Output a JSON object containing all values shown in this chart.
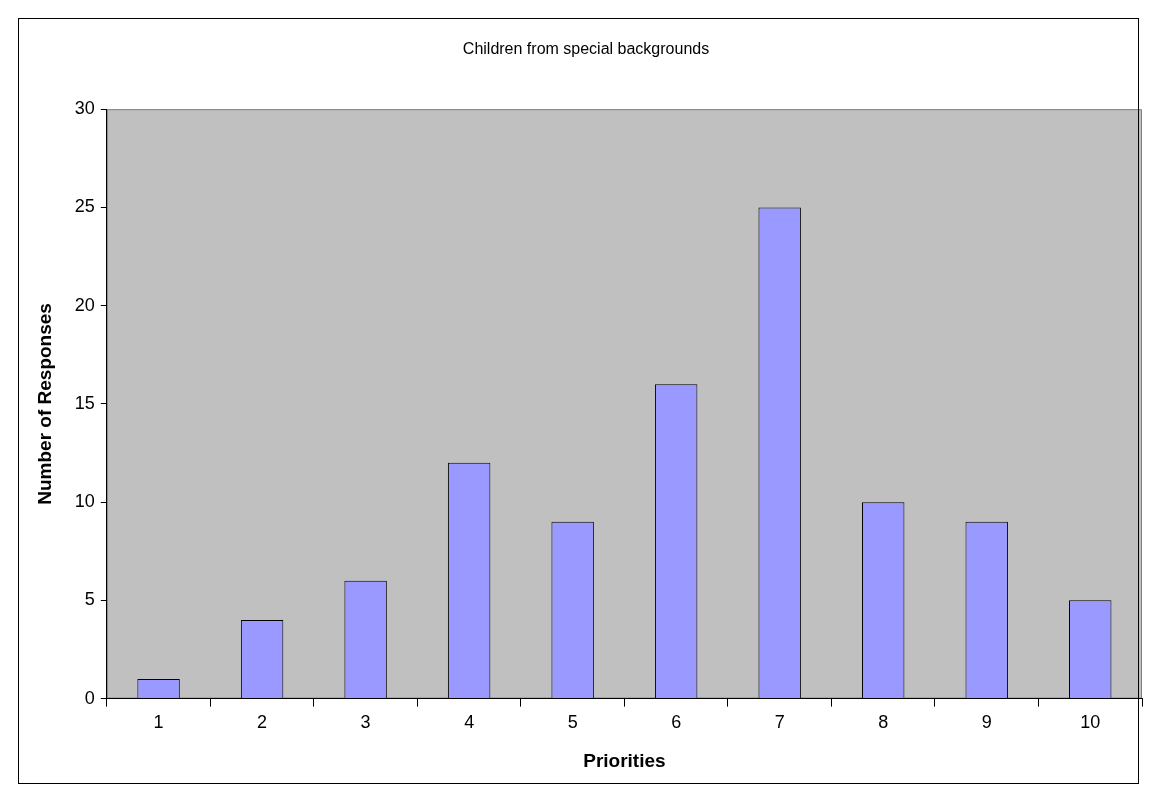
{
  "chart_data": {
    "type": "bar",
    "title": "Children from special backgrounds",
    "xlabel": "Priorities",
    "ylabel": "Number of Responses",
    "categories": [
      "1",
      "2",
      "3",
      "4",
      "5",
      "6",
      "7",
      "8",
      "9",
      "10"
    ],
    "values": [
      1,
      4,
      6,
      12,
      9,
      16,
      25,
      10,
      9,
      5
    ],
    "color": "#9999ff",
    "ylim": [
      0,
      30
    ],
    "yticks": [
      0,
      5,
      10,
      15,
      20,
      25,
      30
    ],
    "grid": false,
    "legend": false
  }
}
